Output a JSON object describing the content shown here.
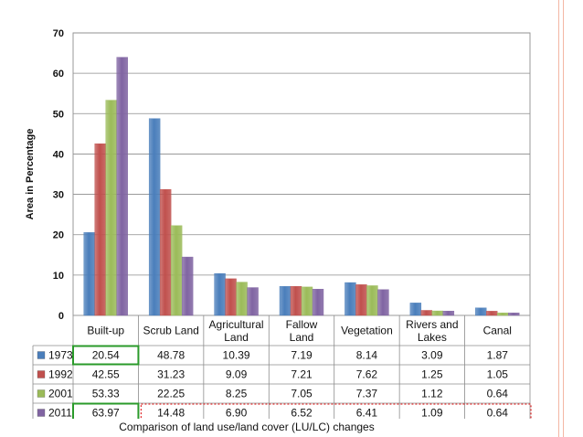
{
  "caption": "Comparison of land use/land cover (LU/LC) changes",
  "chart_data": {
    "type": "bar",
    "title": "",
    "xlabel": "",
    "ylabel": "Area in Percentage",
    "ylim": [
      0,
      70
    ],
    "yticks": [
      "0",
      "10",
      "20",
      "30",
      "40",
      "50",
      "60",
      "70"
    ],
    "grid": true,
    "categories": [
      "Built-up",
      "Scrub Land",
      "Agricultural Land",
      "Fallow Land",
      "Vegetation",
      "Rivers and Lakes",
      "Canal"
    ],
    "series": [
      {
        "name": "1973",
        "color": "#4a7ebb",
        "values": [
          20.54,
          48.78,
          10.39,
          7.19,
          8.14,
          3.09,
          1.87
        ],
        "labels": [
          "20.54",
          "48.78",
          "10.39",
          "7.19",
          "8.14",
          "3.09",
          "1.87"
        ]
      },
      {
        "name": "1992",
        "color": "#c0504d",
        "values": [
          42.55,
          31.23,
          9.09,
          7.21,
          7.62,
          1.25,
          1.05
        ],
        "labels": [
          "42.55",
          "31.23",
          "9.09",
          "7.21",
          "7.62",
          "1.25",
          "1.05"
        ]
      },
      {
        "name": "2001",
        "color": "#9bbb59",
        "values": [
          53.33,
          22.25,
          8.25,
          7.05,
          7.37,
          1.12,
          0.64
        ],
        "labels": [
          "53.33",
          "22.25",
          "8.25",
          "7.05",
          "7.37",
          "1.12",
          "0.64"
        ]
      },
      {
        "name": "2011",
        "color": "#8064a2",
        "values": [
          63.97,
          14.48,
          6.9,
          6.52,
          6.41,
          1.09,
          0.64
        ],
        "labels": [
          "63.97",
          "14.48",
          "6.90",
          "6.52",
          "6.41",
          "1.09",
          "0.64"
        ]
      }
    ],
    "legend": "data-table-left",
    "highlight_color_green": "#2a9a2a",
    "highlight_color_red": "#e03030"
  }
}
